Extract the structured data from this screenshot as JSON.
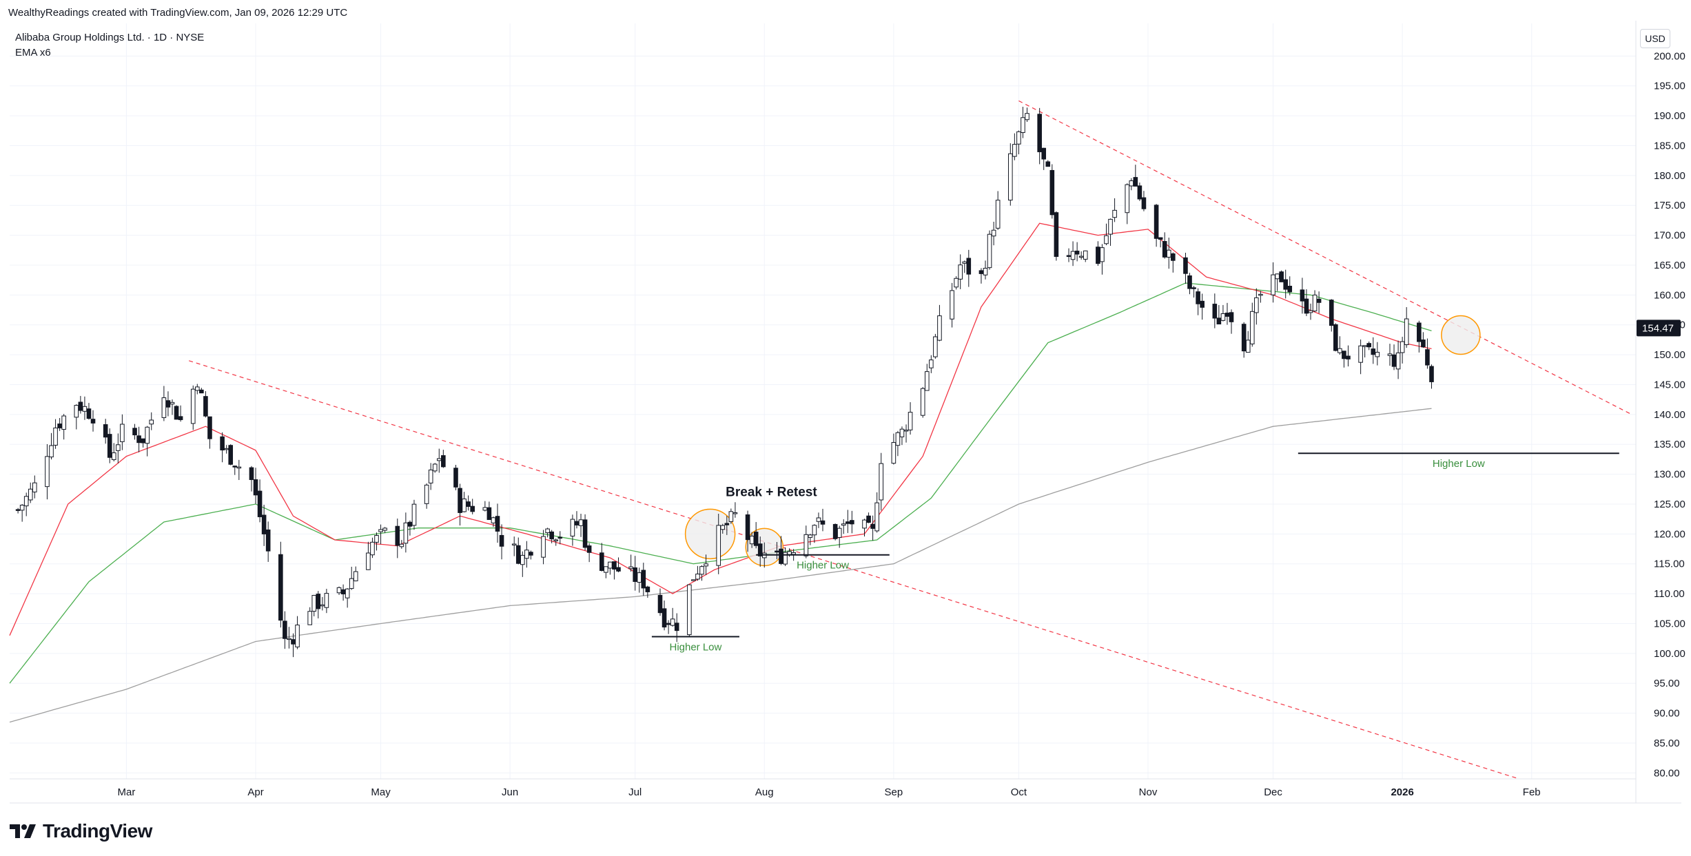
{
  "header": {
    "attribution": "WealthyReadings created with TradingView.com, Jan 09, 2026 12:29 UTC",
    "symbol_line": "Alibaba Group Holdings Ltd. · 1D · NYSE",
    "indicator_line": "EMA x6",
    "currency_button": "USD"
  },
  "brand": {
    "name": "TradingView",
    "logo_icon": "tradingview-logo-icon"
  },
  "colors": {
    "grid": "#f0f3fa",
    "axis_border": "#e0e3eb",
    "candle_up_fill": "#ffffff",
    "candle_down_fill": "#131722",
    "candle_outline": "#131722",
    "ema_fast": "#f23645",
    "ema_mid": "#4caf50",
    "ema_slow": "#9e9e9e",
    "trendline": "#f23645",
    "annotation_green": "#388e3c",
    "circle_orange": "#ff9800",
    "price_label_bg": "#131722"
  },
  "chart_data": {
    "type": "candlestick",
    "title": "Alibaba Group Holdings Ltd. · 1D · NYSE",
    "x_axis_ticks": [
      {
        "label": "Mar",
        "date": "2025-03-01"
      },
      {
        "label": "Apr",
        "date": "2025-04-01"
      },
      {
        "label": "May",
        "date": "2025-05-01"
      },
      {
        "label": "Jun",
        "date": "2025-06-01"
      },
      {
        "label": "Jul",
        "date": "2025-07-01"
      },
      {
        "label": "Aug",
        "date": "2025-08-01"
      },
      {
        "label": "Sep",
        "date": "2025-09-01"
      },
      {
        "label": "Oct",
        "date": "2025-10-01"
      },
      {
        "label": "Nov",
        "date": "2025-11-01"
      },
      {
        "label": "Dec",
        "date": "2025-12-01"
      },
      {
        "label": "2026",
        "date": "2026-01-01"
      },
      {
        "label": "Feb",
        "date": "2026-02-01"
      }
    ],
    "x_range": [
      "2025-02-01",
      "2026-02-26"
    ],
    "y_axis_ticks": [
      "80.00",
      "85.00",
      "90.00",
      "95.00",
      "100.00",
      "105.00",
      "110.00",
      "115.00",
      "120.00",
      "125.00",
      "130.00",
      "135.00",
      "140.00",
      "145.00",
      "150.00",
      "155.00",
      "160.00",
      "165.00",
      "170.00",
      "175.00",
      "180.00",
      "185.00",
      "190.00",
      "195.00",
      "200.00"
    ],
    "y_range": [
      79,
      202
    ],
    "current_price": {
      "label": "154.47",
      "value": 154.47
    },
    "price_path": [
      [
        "2025-02-03",
        124
      ],
      [
        "2025-02-07",
        128
      ],
      [
        "2025-02-12",
        138
      ],
      [
        "2025-02-17",
        142
      ],
      [
        "2025-02-21",
        140
      ],
      [
        "2025-02-25",
        133
      ],
      [
        "2025-02-28",
        137
      ],
      [
        "2025-03-05",
        136
      ],
      [
        "2025-03-10",
        144
      ],
      [
        "2025-03-14",
        139
      ],
      [
        "2025-03-18",
        146
      ],
      [
        "2025-03-21",
        136
      ],
      [
        "2025-03-26",
        133
      ],
      [
        "2025-03-31",
        129
      ],
      [
        "2025-04-04",
        117
      ],
      [
        "2025-04-08",
        102
      ],
      [
        "2025-04-10",
        103
      ],
      [
        "2025-04-14",
        108
      ],
      [
        "2025-04-22",
        110
      ],
      [
        "2025-04-28",
        118
      ],
      [
        "2025-05-02",
        120
      ],
      [
        "2025-05-06",
        119
      ],
      [
        "2025-05-12",
        128
      ],
      [
        "2025-05-15",
        133
      ],
      [
        "2025-05-20",
        125
      ],
      [
        "2025-05-27",
        124
      ],
      [
        "2025-05-30",
        119
      ],
      [
        "2025-06-04",
        116
      ],
      [
        "2025-06-09",
        121
      ],
      [
        "2025-06-13",
        120
      ],
      [
        "2025-06-18",
        122
      ],
      [
        "2025-06-20",
        116
      ],
      [
        "2025-06-27",
        114
      ],
      [
        "2025-07-03",
        112
      ],
      [
        "2025-07-08",
        106
      ],
      [
        "2025-07-11",
        105
      ],
      [
        "2025-07-15",
        113
      ],
      [
        "2025-07-21",
        120
      ],
      [
        "2025-07-25",
        123
      ],
      [
        "2025-07-30",
        117
      ],
      [
        "2025-08-04",
        116
      ],
      [
        "2025-08-08",
        118
      ],
      [
        "2025-08-13",
        122
      ],
      [
        "2025-08-18",
        120
      ],
      [
        "2025-08-22",
        122
      ],
      [
        "2025-08-27",
        120
      ],
      [
        "2025-08-29",
        133
      ],
      [
        "2025-09-03",
        137
      ],
      [
        "2025-09-08",
        145
      ],
      [
        "2025-09-12",
        155
      ],
      [
        "2025-09-17",
        165
      ],
      [
        "2025-09-22",
        163
      ],
      [
        "2025-09-26",
        175
      ],
      [
        "2025-09-30",
        185
      ],
      [
        "2025-10-03",
        190
      ],
      [
        "2025-10-08",
        180
      ],
      [
        "2025-10-10",
        165
      ],
      [
        "2025-10-14",
        168
      ],
      [
        "2025-10-20",
        166
      ],
      [
        "2025-10-23",
        172
      ],
      [
        "2025-10-28",
        180
      ],
      [
        "2025-11-03",
        169
      ],
      [
        "2025-11-07",
        166
      ],
      [
        "2025-11-12",
        160
      ],
      [
        "2025-11-17",
        155
      ],
      [
        "2025-11-20",
        158
      ],
      [
        "2025-11-24",
        152
      ],
      [
        "2025-11-28",
        160
      ],
      [
        "2025-12-03",
        163
      ],
      [
        "2025-12-08",
        158
      ],
      [
        "2025-12-12",
        159
      ],
      [
        "2025-12-17",
        150
      ],
      [
        "2025-12-22",
        150
      ],
      [
        "2025-12-26",
        150
      ],
      [
        "2025-12-31",
        149
      ],
      [
        "2026-01-02",
        156
      ],
      [
        "2026-01-06",
        151
      ],
      [
        "2026-01-08",
        147
      ]
    ],
    "ema_fast_path": [
      [
        "2025-02-01",
        103
      ],
      [
        "2025-02-15",
        125
      ],
      [
        "2025-03-01",
        133
      ],
      [
        "2025-03-20",
        138
      ],
      [
        "2025-04-01",
        134
      ],
      [
        "2025-04-10",
        123
      ],
      [
        "2025-04-20",
        119
      ],
      [
        "2025-05-05",
        118
      ],
      [
        "2025-05-20",
        123
      ],
      [
        "2025-06-05",
        120
      ],
      [
        "2025-06-25",
        116
      ],
      [
        "2025-07-10",
        110
      ],
      [
        "2025-07-20",
        114
      ],
      [
        "2025-08-05",
        118
      ],
      [
        "2025-08-25",
        120
      ],
      [
        "2025-09-08",
        133
      ],
      [
        "2025-09-22",
        158
      ],
      [
        "2025-10-06",
        172
      ],
      [
        "2025-10-20",
        170
      ],
      [
        "2025-11-01",
        171
      ],
      [
        "2025-11-15",
        163
      ],
      [
        "2025-12-01",
        160
      ],
      [
        "2025-12-15",
        156
      ],
      [
        "2026-01-01",
        152
      ],
      [
        "2026-01-08",
        151
      ]
    ],
    "ema_mid_path": [
      [
        "2025-02-01",
        95
      ],
      [
        "2025-02-20",
        112
      ],
      [
        "2025-03-10",
        122
      ],
      [
        "2025-04-01",
        125
      ],
      [
        "2025-04-20",
        119
      ],
      [
        "2025-05-10",
        121
      ],
      [
        "2025-06-01",
        121
      ],
      [
        "2025-06-25",
        118
      ],
      [
        "2025-07-15",
        115
      ],
      [
        "2025-08-05",
        117
      ],
      [
        "2025-08-28",
        119
      ],
      [
        "2025-09-10",
        126
      ],
      [
        "2025-09-25",
        140
      ],
      [
        "2025-10-08",
        152
      ],
      [
        "2025-10-25",
        157
      ],
      [
        "2025-11-10",
        162
      ],
      [
        "2025-11-25",
        161
      ],
      [
        "2025-12-10",
        160
      ],
      [
        "2025-12-25",
        157
      ],
      [
        "2026-01-08",
        154
      ]
    ],
    "ema_slow_path": [
      [
        "2025-02-01",
        88.5
      ],
      [
        "2025-03-01",
        94
      ],
      [
        "2025-04-01",
        102
      ],
      [
        "2025-05-01",
        105
      ],
      [
        "2025-06-01",
        108
      ],
      [
        "2025-07-01",
        109.5
      ],
      [
        "2025-08-01",
        112
      ],
      [
        "2025-09-01",
        115
      ],
      [
        "2025-10-01",
        125
      ],
      [
        "2025-11-01",
        132
      ],
      [
        "2025-12-01",
        138
      ],
      [
        "2026-01-08",
        141
      ]
    ],
    "trendlines": [
      {
        "from": [
          "2025-03-16",
          149
        ],
        "to": [
          "2026-01-29",
          79
        ]
      },
      {
        "from": [
          "2025-10-01",
          192.5
        ],
        "to": [
          "2026-02-25",
          140
        ]
      }
    ],
    "support_lines": [
      {
        "from": [
          "2025-07-05",
          102.8
        ],
        "to": [
          "2025-07-26",
          102.8
        ],
        "label": "Higher Low"
      },
      {
        "from": [
          "2025-07-30",
          116.5
        ],
        "to": [
          "2025-08-31",
          116.5
        ],
        "label": "Higher Low"
      },
      {
        "from": [
          "2025-12-07",
          133.5
        ],
        "to": [
          "2026-02-22",
          133.5
        ],
        "label": "Higher Low"
      }
    ],
    "annotations": [
      {
        "text": "Break + Retest",
        "date": "2025-08-04",
        "value": 126.3
      }
    ],
    "highlight_circles": [
      {
        "date": "2025-07-19",
        "value": 120,
        "size": "large",
        "fill": "#eeeeee"
      },
      {
        "date": "2025-08-01",
        "value": 117.8,
        "size": "small",
        "fill": "#eeeeee"
      },
      {
        "date": "2026-01-15",
        "value": 153.3,
        "size": "medium",
        "fill": "#eeeeee"
      }
    ]
  }
}
